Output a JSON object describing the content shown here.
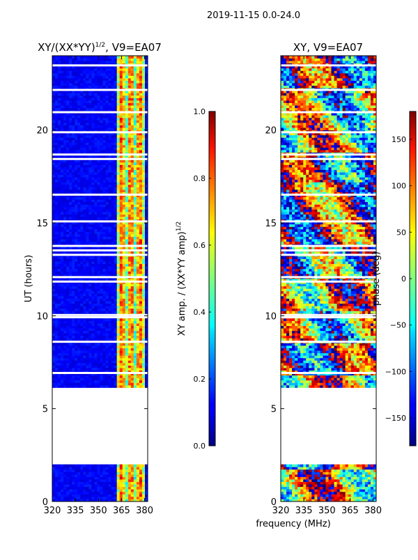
{
  "figure": {
    "suptitle": "2019-11-15 0.0-24.0",
    "shared_xlabel": "frequency (MHz)"
  },
  "chart_data": [
    {
      "type": "heatmap",
      "title": "XY/(XX*YY)",
      "title_exponent": "1/2",
      "title_suffix": ", V9=EA07",
      "xlabel": "",
      "ylabel": "UT (hours)",
      "xlim": [
        320,
        382
      ],
      "ylim": [
        0,
        24
      ],
      "xticks": [
        320,
        335,
        350,
        365,
        380
      ],
      "yticks": [
        0,
        5,
        10,
        15,
        20
      ],
      "colormap": "jet",
      "colorbar": {
        "label": "XY amp. / (XX*YY amp)",
        "label_exponent": "1/2",
        "range": [
          0.0,
          1.0
        ],
        "ticks": [
          "0.0",
          "0.2",
          "0.4",
          "0.6",
          "0.8",
          "1.0"
        ]
      },
      "data_gaps_hours": [
        [
          2.0,
          6.1
        ]
      ],
      "bright_band_mhz": [
        362,
        380
      ]
    },
    {
      "type": "heatmap",
      "title": "XY, V9=EA07",
      "xlabel": "frequency (MHz)",
      "ylabel": "",
      "xlim": [
        320,
        382
      ],
      "ylim": [
        0,
        24
      ],
      "xticks": [
        320,
        335,
        350,
        365,
        380
      ],
      "yticks": [
        0,
        5,
        10,
        15,
        20
      ],
      "colormap": "jet",
      "colorbar": {
        "label": "phase (deg)",
        "range": [
          -180,
          180
        ],
        "ticks": [
          "−150",
          "−100",
          "−50",
          "0",
          "50",
          "100",
          "150"
        ]
      },
      "data_gaps_hours": [
        [
          2.0,
          6.1
        ]
      ]
    }
  ]
}
